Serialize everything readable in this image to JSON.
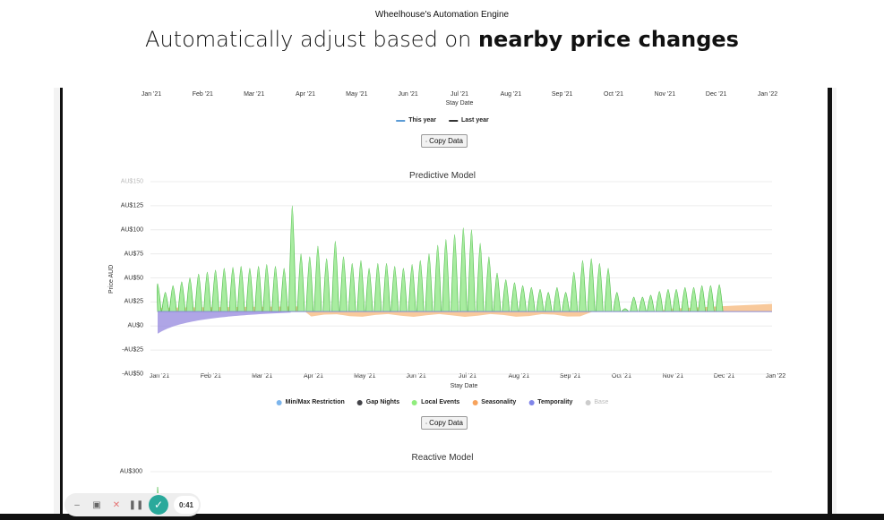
{
  "page": {
    "eyebrow": "Wheelhouse's Automation Engine",
    "headline_pre": "Automatically adjust based on ",
    "headline_bold": "nearby price changes"
  },
  "top_chart": {
    "x_ticks": [
      "Jan '21",
      "Feb '21",
      "Mar '21",
      "Apr '21",
      "May '21",
      "Jun '21",
      "Jul '21",
      "Aug '21",
      "Sep '21",
      "Oct '21",
      "Nov '21",
      "Dec '21",
      "Jan '22"
    ],
    "x_axis_title": "Stay Date",
    "legend": [
      {
        "label": "This year",
        "color": "#5b9bd5"
      },
      {
        "label": "Last year",
        "color": "#333333"
      }
    ],
    "copy_label": "Copy Data"
  },
  "chart_data": [
    {
      "type": "area",
      "title": "Predictive Model",
      "xlabel": "Stay Date",
      "ylabel": "Price AUD",
      "x_ticks": [
        "Jan '21",
        "Feb '21",
        "Mar '21",
        "Apr '21",
        "May '21",
        "Jun '21",
        "Jul '21",
        "Aug '21",
        "Sep '21",
        "Oct '21",
        "Nov '21",
        "Dec '21",
        "Jan '22"
      ],
      "y_ticks": [
        "AU$150",
        "AU$125",
        "AU$100",
        "AU$75",
        "AU$50",
        "AU$25",
        "AU$0",
        "-AU$25",
        "-AU$50"
      ],
      "ylim": [
        -50,
        150
      ],
      "legend": [
        {
          "label": "Min/Max Restriction",
          "color": "#7cb5ec"
        },
        {
          "label": "Gap Nights",
          "color": "#434348"
        },
        {
          "label": "Local Events",
          "color": "#90ed7d"
        },
        {
          "label": "Seasonality",
          "color": "#f7a35c"
        },
        {
          "label": "Temporality",
          "color": "#8085e9"
        },
        {
          "label": "Base",
          "color": "#cccccc"
        }
      ],
      "series": {
        "local_events_peaks": [
          {
            "m": 0.0,
            "v": 44
          },
          {
            "m": 0.15,
            "v": 35
          },
          {
            "m": 0.3,
            "v": 42
          },
          {
            "m": 0.47,
            "v": 46
          },
          {
            "m": 0.63,
            "v": 50
          },
          {
            "m": 0.8,
            "v": 54
          },
          {
            "m": 0.97,
            "v": 56
          },
          {
            "m": 1.13,
            "v": 58
          },
          {
            "m": 1.3,
            "v": 60
          },
          {
            "m": 1.47,
            "v": 61
          },
          {
            "m": 1.63,
            "v": 62
          },
          {
            "m": 1.8,
            "v": 60
          },
          {
            "m": 1.97,
            "v": 62
          },
          {
            "m": 2.13,
            "v": 64
          },
          {
            "m": 2.3,
            "v": 62
          },
          {
            "m": 2.47,
            "v": 60
          },
          {
            "m": 2.63,
            "v": 125
          },
          {
            "m": 2.8,
            "v": 75
          },
          {
            "m": 2.97,
            "v": 72
          },
          {
            "m": 3.13,
            "v": 83
          },
          {
            "m": 3.3,
            "v": 70
          },
          {
            "m": 3.47,
            "v": 88
          },
          {
            "m": 3.63,
            "v": 72
          },
          {
            "m": 3.8,
            "v": 65
          },
          {
            "m": 3.97,
            "v": 68
          },
          {
            "m": 4.13,
            "v": 60
          },
          {
            "m": 4.3,
            "v": 65
          },
          {
            "m": 4.47,
            "v": 65
          },
          {
            "m": 4.63,
            "v": 62
          },
          {
            "m": 4.8,
            "v": 60
          },
          {
            "m": 4.97,
            "v": 64
          },
          {
            "m": 5.13,
            "v": 68
          },
          {
            "m": 5.3,
            "v": 75
          },
          {
            "m": 5.47,
            "v": 84
          },
          {
            "m": 5.63,
            "v": 90
          },
          {
            "m": 5.8,
            "v": 95
          },
          {
            "m": 5.97,
            "v": 102
          },
          {
            "m": 6.13,
            "v": 100
          },
          {
            "m": 6.3,
            "v": 86
          },
          {
            "m": 6.47,
            "v": 72
          },
          {
            "m": 6.63,
            "v": 55
          },
          {
            "m": 6.8,
            "v": 48
          },
          {
            "m": 6.97,
            "v": 45
          },
          {
            "m": 7.13,
            "v": 42
          },
          {
            "m": 7.3,
            "v": 40
          },
          {
            "m": 7.47,
            "v": 38
          },
          {
            "m": 7.63,
            "v": 35
          },
          {
            "m": 7.8,
            "v": 40
          },
          {
            "m": 7.97,
            "v": 35
          },
          {
            "m": 8.13,
            "v": 56
          },
          {
            "m": 8.3,
            "v": 68
          },
          {
            "m": 8.47,
            "v": 70
          },
          {
            "m": 8.63,
            "v": 65
          },
          {
            "m": 8.8,
            "v": 60
          },
          {
            "m": 8.97,
            "v": 35
          },
          {
            "m": 9.13,
            "v": 18
          },
          {
            "m": 9.3,
            "v": 30
          },
          {
            "m": 9.47,
            "v": 30
          },
          {
            "m": 9.63,
            "v": 32
          },
          {
            "m": 9.8,
            "v": 36
          },
          {
            "m": 9.97,
            "v": 38
          },
          {
            "m": 10.13,
            "v": 38
          },
          {
            "m": 10.3,
            "v": 40
          },
          {
            "m": 10.47,
            "v": 40
          },
          {
            "m": 10.63,
            "v": 42
          },
          {
            "m": 10.8,
            "v": 42
          },
          {
            "m": 10.97,
            "v": 43
          }
        ],
        "base_level": 15
      }
    },
    {
      "type": "area",
      "title": "Reactive Model",
      "y_ticks": [
        "AU$300"
      ]
    }
  ],
  "copy_label_2": "Copy Data",
  "player": {
    "timer": "0:41"
  }
}
